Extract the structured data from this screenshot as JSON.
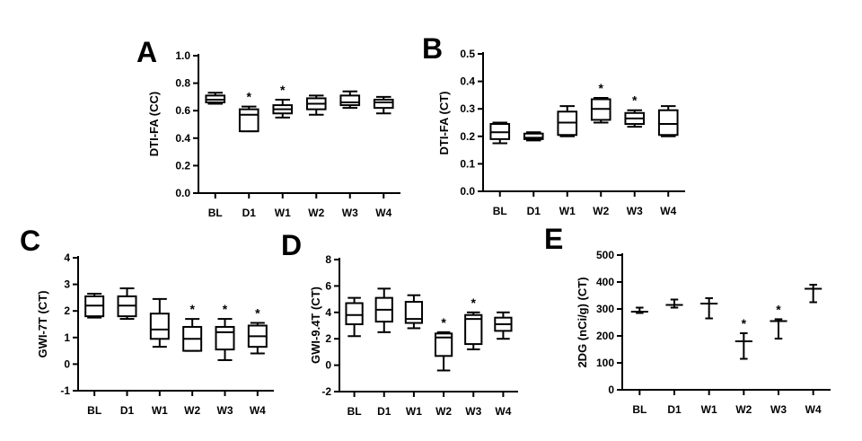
{
  "figure": {
    "panel_letters": [
      "A",
      "B",
      "C",
      "D",
      "E"
    ]
  },
  "chart_data": [
    {
      "panel": "A",
      "type": "box",
      "ylabel": "DTI-FA (CC)",
      "categories": [
        "BL",
        "D1",
        "W1",
        "W2",
        "W3",
        "W4"
      ],
      "ylim": [
        0.0,
        1.0
      ],
      "yticks": [
        0.0,
        0.2,
        0.4,
        0.6,
        0.8,
        1.0
      ],
      "tick_decimals": 1,
      "boxes": [
        {
          "min": 0.65,
          "q1": 0.66,
          "median": 0.68,
          "q3": 0.71,
          "max": 0.73
        },
        {
          "min": 0.45,
          "q1": 0.45,
          "median": 0.57,
          "q3": 0.61,
          "max": 0.63
        },
        {
          "min": 0.55,
          "q1": 0.58,
          "median": 0.61,
          "q3": 0.64,
          "max": 0.68
        },
        {
          "min": 0.57,
          "q1": 0.61,
          "median": 0.65,
          "q3": 0.69,
          "max": 0.71
        },
        {
          "min": 0.62,
          "q1": 0.64,
          "median": 0.66,
          "q3": 0.71,
          "max": 0.74
        },
        {
          "min": 0.58,
          "q1": 0.62,
          "median": 0.66,
          "q3": 0.68,
          "max": 0.7
        }
      ],
      "significance": [
        false,
        true,
        true,
        false,
        false,
        false
      ],
      "star": "*"
    },
    {
      "panel": "B",
      "type": "box",
      "ylabel": "DTI-FA (CT)",
      "categories": [
        "BL",
        "D1",
        "W1",
        "W2",
        "W3",
        "W4"
      ],
      "ylim": [
        0.0,
        0.5
      ],
      "yticks": [
        0.0,
        0.1,
        0.2,
        0.3,
        0.4,
        0.5
      ],
      "tick_decimals": 1,
      "boxes": [
        {
          "min": 0.175,
          "q1": 0.19,
          "median": 0.215,
          "q3": 0.245,
          "max": 0.25
        },
        {
          "min": 0.185,
          "q1": 0.19,
          "median": 0.195,
          "q3": 0.21,
          "max": 0.215
        },
        {
          "min": 0.2,
          "q1": 0.205,
          "median": 0.25,
          "q3": 0.29,
          "max": 0.31
        },
        {
          "min": 0.25,
          "q1": 0.26,
          "median": 0.3,
          "q3": 0.335,
          "max": 0.34
        },
        {
          "min": 0.235,
          "q1": 0.245,
          "median": 0.265,
          "q3": 0.285,
          "max": 0.295
        },
        {
          "min": 0.2,
          "q1": 0.205,
          "median": 0.245,
          "q3": 0.295,
          "max": 0.31
        }
      ],
      "significance": [
        false,
        false,
        false,
        true,
        true,
        false
      ],
      "star": "*"
    },
    {
      "panel": "C",
      "type": "box",
      "ylabel": "GWI-7T (CT)",
      "categories": [
        "BL",
        "D1",
        "W1",
        "W2",
        "W3",
        "W4"
      ],
      "ylim": [
        -1,
        4
      ],
      "yticks": [
        -1,
        0,
        1,
        2,
        3,
        4
      ],
      "tick_decimals": 0,
      "boxes": [
        {
          "min": 1.75,
          "q1": 1.8,
          "median": 2.2,
          "q3": 2.55,
          "max": 2.65
        },
        {
          "min": 1.7,
          "q1": 1.8,
          "median": 2.2,
          "q3": 2.55,
          "max": 2.85
        },
        {
          "min": 0.65,
          "q1": 0.95,
          "median": 1.3,
          "q3": 1.9,
          "max": 2.45
        },
        {
          "min": 0.5,
          "q1": 0.5,
          "median": 0.95,
          "q3": 1.4,
          "max": 1.7
        },
        {
          "min": 0.15,
          "q1": 0.55,
          "median": 1.2,
          "q3": 1.4,
          "max": 1.7
        },
        {
          "min": 0.4,
          "q1": 0.65,
          "median": 1.05,
          "q3": 1.45,
          "max": 1.55
        }
      ],
      "significance": [
        false,
        false,
        false,
        true,
        true,
        true
      ],
      "star": "*"
    },
    {
      "panel": "D",
      "type": "box",
      "ylabel": "GWI-9.4T (CT)",
      "categories": [
        "BL",
        "D1",
        "W1",
        "W2",
        "W3",
        "W4"
      ],
      "ylim": [
        -2,
        8
      ],
      "yticks": [
        -2,
        0,
        2,
        4,
        6,
        8
      ],
      "tick_decimals": 0,
      "boxes": [
        {
          "min": 2.2,
          "q1": 3.1,
          "median": 3.8,
          "q3": 4.7,
          "max": 5.1
        },
        {
          "min": 2.5,
          "q1": 3.3,
          "median": 4.2,
          "q3": 5.1,
          "max": 5.8
        },
        {
          "min": 2.8,
          "q1": 3.2,
          "median": 3.5,
          "q3": 4.8,
          "max": 5.3
        },
        {
          "min": -0.4,
          "q1": 0.7,
          "median": 2.1,
          "q3": 2.4,
          "max": 2.5
        },
        {
          "min": 1.2,
          "q1": 1.6,
          "median": 3.5,
          "q3": 3.8,
          "max": 4.0
        },
        {
          "min": 2.0,
          "q1": 2.6,
          "median": 3.1,
          "q3": 3.6,
          "max": 4.0
        }
      ],
      "significance": [
        false,
        false,
        false,
        true,
        true,
        false
      ],
      "star": "*"
    },
    {
      "panel": "E",
      "type": "errorbar",
      "ylabel": "2DG (nCi/g) (CT)",
      "categories": [
        "BL",
        "D1",
        "W1",
        "W2",
        "W3",
        "W4"
      ],
      "ylim": [
        0,
        500
      ],
      "yticks": [
        0,
        100,
        200,
        300,
        400,
        500
      ],
      "tick_decimals": 0,
      "means": [
        290,
        315,
        320,
        180,
        255,
        375
      ],
      "err_upper": [
        305,
        335,
        340,
        210,
        262,
        390
      ],
      "err_lower": [
        285,
        305,
        265,
        115,
        190,
        325
      ],
      "significance": [
        false,
        false,
        false,
        true,
        true,
        false
      ],
      "star": "*"
    }
  ]
}
